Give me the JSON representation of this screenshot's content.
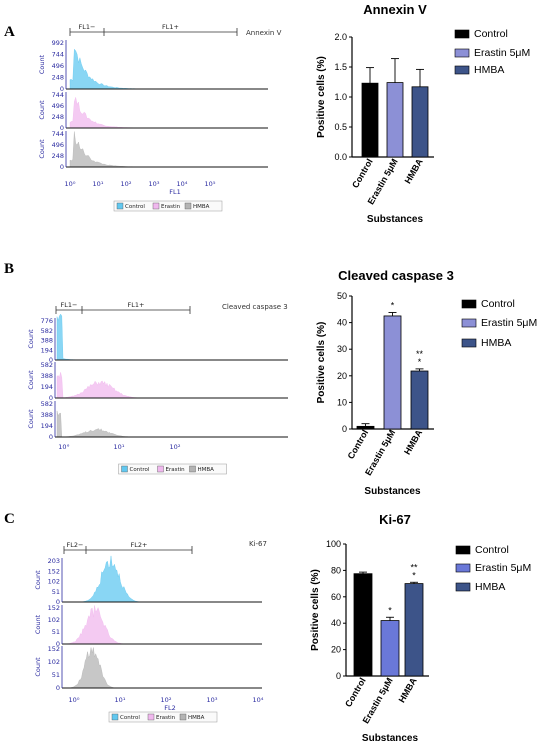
{
  "colors": {
    "control_bar": "#000000",
    "erastin_bar": "#8c90d6",
    "hmba_bar": "#3d5489",
    "ki67_erastin_bar": "#6a78d8",
    "control_hist": "#62c8f0",
    "erastin_hist": "#f0b8ee",
    "hmba_hist": "#b4b4b4",
    "axis_blue": "#2a2aa0"
  },
  "panels": [
    {
      "letter": "A",
      "flow": {
        "marker": "Annexin V",
        "gate_neg": "FL1−",
        "gate_pos": "FL1+",
        "xlabel": "FL1",
        "count_label": "Count",
        "x_ticks": [
          "10⁰",
          "10¹",
          "10²",
          "10³",
          "10⁴",
          "10⁵"
        ],
        "rows": [
          {
            "series": "Control",
            "y_ticks": [
              "992",
              "744",
              "496",
              "248",
              "0"
            ]
          },
          {
            "series": "Erastin",
            "y_ticks": [
              "744",
              "496",
              "248",
              "0"
            ]
          },
          {
            "series": "HMBA",
            "y_ticks": [
              "744",
              "496",
              "248",
              "0"
            ]
          }
        ],
        "legend": [
          "Control",
          "Erastin",
          "HMBA"
        ]
      },
      "bar": {
        "title": "Annexin  V",
        "ylabel": "Positive cells (%)",
        "xlabel": "Substances",
        "y_ticks": [
          "0.0",
          "0.5",
          "1.0",
          "1.5",
          "2.0"
        ],
        "legend": [
          "Control",
          "Erastin 5μM",
          "HMBA"
        ]
      }
    },
    {
      "letter": "B",
      "flow": {
        "marker": "Cleaved caspase 3",
        "gate_neg": "FL1−",
        "gate_pos": "FL1+",
        "xlabel": "",
        "count_label": "Count",
        "x_ticks": [
          "10°",
          "10¹",
          "10²"
        ],
        "rows": [
          {
            "series": "Control",
            "y_ticks": [
              "776",
              "582",
              "388",
              "194",
              "0"
            ]
          },
          {
            "series": "Erastin",
            "y_ticks": [
              "582",
              "388",
              "194",
              "0"
            ]
          },
          {
            "series": "HMBA",
            "y_ticks": [
              "582",
              "388",
              "194",
              "0"
            ]
          }
        ],
        "legend": [
          "Control",
          "Erastin",
          "HMBA"
        ]
      },
      "bar": {
        "title": "Cleaved caspase 3",
        "ylabel": "Positive cells (%)",
        "xlabel": "Substances",
        "y_ticks": [
          "0",
          "10",
          "20",
          "30",
          "40",
          "50"
        ],
        "legend": [
          "Control",
          "Erastin 5μM",
          "HMBA"
        ],
        "sig": [
          "",
          "*",
          "**\n*"
        ]
      }
    },
    {
      "letter": "C",
      "flow": {
        "marker": "Ki-67",
        "gate_neg": "FL2−",
        "gate_pos": "FL2+",
        "xlabel": "FL2",
        "count_label": "Count",
        "x_ticks": [
          "10⁰",
          "10¹",
          "10²",
          "10³",
          "10⁴"
        ],
        "rows": [
          {
            "series": "Control",
            "y_ticks": [
              "203",
              "152",
              "102",
              "51",
              "0"
            ]
          },
          {
            "series": "Erastin",
            "y_ticks": [
              "152",
              "102",
              "51",
              "0"
            ]
          },
          {
            "series": "HMBA",
            "y_ticks": [
              "152",
              "102",
              "51",
              "0"
            ]
          }
        ],
        "legend": [
          "Control",
          "Erastin",
          "HMBA"
        ]
      },
      "bar": {
        "title": "Ki-67",
        "ylabel": "Positive cells (%)",
        "xlabel": "Substances",
        "y_ticks": [
          "0",
          "20",
          "40",
          "60",
          "80",
          "100"
        ],
        "legend": [
          "Control",
          "Erastin 5μM",
          "HMBA"
        ],
        "sig": [
          "",
          "*",
          "**\n*"
        ]
      }
    }
  ],
  "chart_data": [
    {
      "type": "bar",
      "title": "Annexin  V",
      "xlabel": "Substances",
      "ylabel": "Positive cells (%)",
      "categories": [
        "Control",
        "Erastin 5μM",
        "HMBA"
      ],
      "values": [
        1.23,
        1.24,
        1.17
      ],
      "error": [
        0.26,
        0.4,
        0.29
      ],
      "ylim": [
        0,
        2
      ],
      "legend": "right"
    },
    {
      "type": "bar",
      "title": "Cleaved caspase 3",
      "xlabel": "Substances",
      "ylabel": "Positive cells (%)",
      "categories": [
        "Control",
        "Erastin 5μM",
        "HMBA"
      ],
      "values": [
        1.0,
        42.5,
        21.8
      ],
      "error": [
        1.0,
        1.3,
        0.8
      ],
      "ylim": [
        0,
        50
      ],
      "legend": "right"
    },
    {
      "type": "bar",
      "title": "Ki-67",
      "xlabel": "Substances",
      "ylabel": "Positive cells (%)",
      "categories": [
        "Control",
        "Erastin 5μM",
        "HMBA"
      ],
      "values": [
        77.5,
        42.0,
        70.0
      ],
      "error": [
        1.2,
        2.5,
        1.0
      ],
      "ylim": [
        0,
        100
      ],
      "legend": "right"
    }
  ]
}
